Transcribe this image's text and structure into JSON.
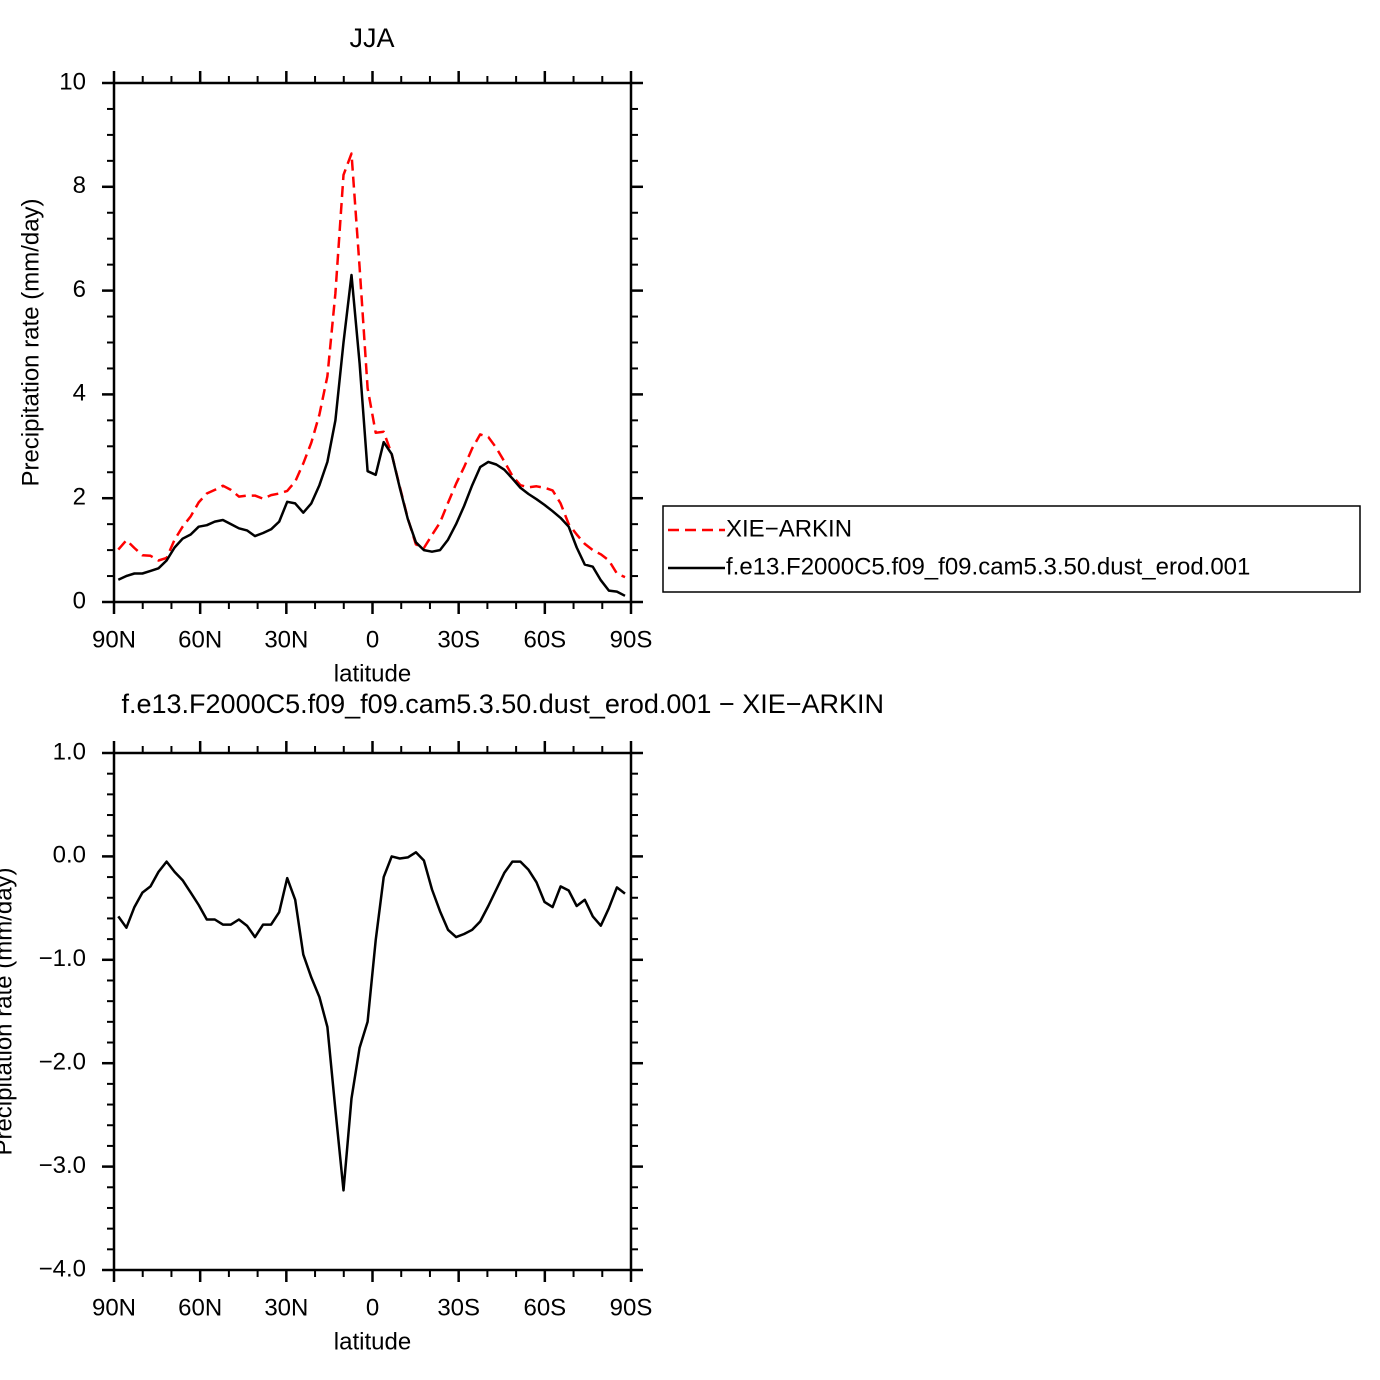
{
  "chart_data": [
    {
      "type": "line",
      "title": "JJA",
      "xlabel": "latitude",
      "ylabel": "Precipitation rate (mm/day)",
      "x": [
        88.5,
        85.7,
        82.9,
        80.1,
        77.3,
        74.5,
        71.7,
        68.9,
        66.1,
        63.3,
        60.5,
        57.7,
        54.9,
        52.1,
        49.3,
        46.5,
        43.7,
        40.9,
        38.1,
        35.3,
        32.5,
        29.7,
        26.9,
        24.1,
        21.3,
        18.5,
        15.7,
        12.9,
        10.1,
        7.3,
        4.5,
        1.7,
        -1.1,
        -3.9,
        -6.7,
        -9.5,
        -12.3,
        -15.1,
        -17.9,
        -20.7,
        -23.5,
        -26.3,
        -29.1,
        -31.9,
        -34.7,
        -37.5,
        -40.3,
        -43.1,
        -45.9,
        -48.7,
        -51.5,
        -54.3,
        -57.1,
        -59.9,
        -62.7,
        -65.5,
        -68.3,
        -71.1,
        -73.9,
        -76.7,
        -79.5,
        -82.3,
        -85.1,
        -87.9
      ],
      "series": [
        {
          "name": "XIE−ARKIN",
          "color": "#ff0000",
          "dashed": true,
          "values": [
            1.01,
            1.19,
            1.04,
            0.9,
            0.89,
            0.8,
            0.85,
            1.2,
            1.45,
            1.65,
            1.92,
            2.09,
            2.16,
            2.24,
            2.16,
            2.03,
            2.05,
            2.05,
            1.99,
            2.06,
            2.09,
            2.14,
            2.32,
            2.67,
            3.07,
            3.61,
            4.35,
            5.95,
            8.23,
            8.64,
            6.45,
            4.12,
            3.26,
            3.28,
            2.85,
            2.22,
            1.61,
            1.11,
            1.04,
            1.29,
            1.53,
            1.91,
            2.28,
            2.6,
            2.96,
            3.23,
            3.18,
            2.97,
            2.71,
            2.43,
            2.25,
            2.21,
            2.23,
            2.2,
            2.15,
            1.9,
            1.5,
            1.3,
            1.12,
            1.0,
            0.92,
            0.8,
            0.55,
            0.48
          ]
        },
        {
          "name": "f.e13.F2000C5.f09_f09.cam5.3.50.dust_erod.001",
          "color": "#000000",
          "dashed": false,
          "values": [
            0.43,
            0.5,
            0.55,
            0.55,
            0.6,
            0.65,
            0.8,
            1.05,
            1.22,
            1.3,
            1.45,
            1.48,
            1.55,
            1.58,
            1.5,
            1.42,
            1.38,
            1.27,
            1.33,
            1.4,
            1.55,
            1.93,
            1.9,
            1.72,
            1.9,
            2.25,
            2.7,
            3.5,
            5.0,
            6.3,
            4.6,
            2.52,
            2.45,
            3.08,
            2.85,
            2.2,
            1.6,
            1.15,
            1.0,
            0.97,
            1.0,
            1.2,
            1.5,
            1.85,
            2.25,
            2.6,
            2.7,
            2.65,
            2.55,
            2.38,
            2.2,
            2.08,
            1.98,
            1.87,
            1.75,
            1.62,
            1.45,
            1.05,
            0.72,
            0.68,
            0.42,
            0.22,
            0.2,
            0.12
          ]
        }
      ],
      "xlim": [
        90,
        -90
      ],
      "xticks": [
        {
          "value": 90,
          "label": "90N"
        },
        {
          "value": 60,
          "label": "60N"
        },
        {
          "value": 30,
          "label": "30N"
        },
        0,
        {
          "value": -30,
          "label": "30S"
        },
        {
          "value": -60,
          "label": "60S"
        },
        {
          "value": -90,
          "label": "90S"
        }
      ],
      "ylim": [
        0,
        10
      ],
      "yticks": [
        0,
        2,
        4,
        6,
        8,
        10
      ],
      "legend": "right"
    },
    {
      "type": "line",
      "title": "f.e13.F2000C5.f09_f09.cam5.3.50.dust_erod.001 − XIE−ARKIN",
      "xlabel": "latitude",
      "ylabel": "Precipitation rate (mm/day)",
      "x": [
        88.5,
        85.7,
        82.9,
        80.1,
        77.3,
        74.5,
        71.7,
        68.9,
        66.1,
        63.3,
        60.5,
        57.7,
        54.9,
        52.1,
        49.3,
        46.5,
        43.7,
        40.9,
        38.1,
        35.3,
        32.5,
        29.7,
        26.9,
        24.1,
        21.3,
        18.5,
        15.7,
        12.9,
        10.1,
        7.3,
        4.5,
        1.7,
        -1.1,
        -3.9,
        -6.7,
        -9.5,
        -12.3,
        -15.1,
        -17.9,
        -20.7,
        -23.5,
        -26.3,
        -29.1,
        -31.9,
        -34.7,
        -37.5,
        -40.3,
        -43.1,
        -45.9,
        -48.7,
        -51.5,
        -54.3,
        -57.1,
        -59.9,
        -62.7,
        -65.5,
        -68.3,
        -71.1,
        -73.9,
        -76.7,
        -79.5,
        -82.3,
        -85.1,
        -87.9
      ],
      "color": "#000000",
      "values": [
        -0.58,
        -0.69,
        -0.49,
        -0.35,
        -0.29,
        -0.15,
        -0.05,
        -0.15,
        -0.23,
        -0.35,
        -0.47,
        -0.61,
        -0.61,
        -0.66,
        -0.66,
        -0.61,
        -0.67,
        -0.78,
        -0.66,
        -0.66,
        -0.54,
        -0.21,
        -0.42,
        -0.95,
        -1.17,
        -1.36,
        -1.65,
        -2.45,
        -3.23,
        -2.34,
        -1.85,
        -1.6,
        -0.81,
        -0.2,
        0.0,
        -0.02,
        -0.01,
        0.04,
        -0.04,
        -0.32,
        -0.53,
        -0.71,
        -0.78,
        -0.75,
        -0.71,
        -0.63,
        -0.48,
        -0.32,
        -0.16,
        -0.05,
        -0.05,
        -0.13,
        -0.25,
        -0.44,
        -0.49,
        -0.29,
        -0.33,
        -0.48,
        -0.42,
        -0.58,
        -0.67,
        -0.5,
        -0.3,
        -0.36
      ],
      "xlim": [
        90,
        -90
      ],
      "xticks": [
        {
          "value": 90,
          "label": "90N"
        },
        {
          "value": 60,
          "label": "60N"
        },
        {
          "value": 30,
          "label": "30N"
        },
        0,
        {
          "value": -30,
          "label": "30S"
        },
        {
          "value": -60,
          "label": "60S"
        },
        {
          "value": -90,
          "label": "90S"
        }
      ],
      "ylim": [
        -4,
        1
      ],
      "yticks": [
        {
          "value": -4,
          "label": "−4.0"
        },
        {
          "value": -3,
          "label": "−3.0"
        },
        {
          "value": -2,
          "label": "−2.0"
        },
        {
          "value": -1,
          "label": "−1.0"
        },
        {
          "value": 0,
          "label": "0.0"
        },
        {
          "value": 1,
          "label": "1.0"
        }
      ]
    }
  ]
}
